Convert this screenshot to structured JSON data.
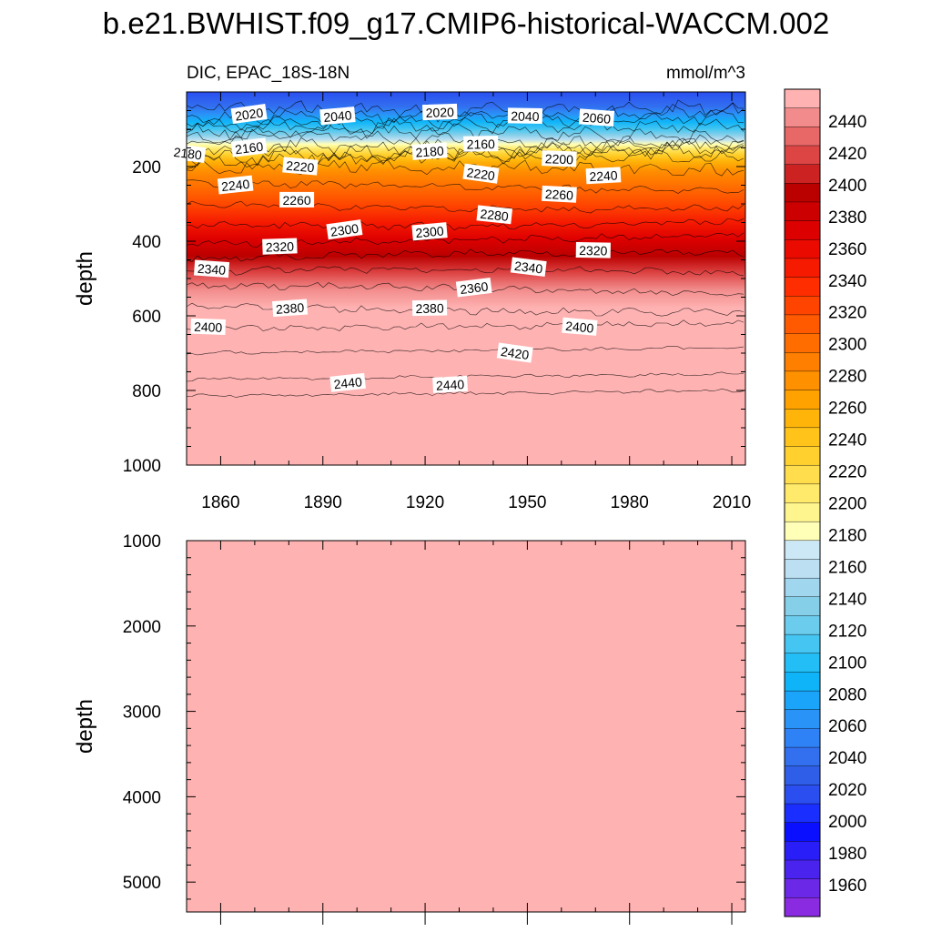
{
  "title": "b.e21.BWHIST.f09_g17.CMIP6-historical-WACCM.002",
  "colors": {
    "upper_hot": "#ffb2b2",
    "lower_panel": "#ffb2b2",
    "contour_line": "#000000"
  },
  "chart_data": [
    {
      "type": "heatmap",
      "panel": "upper",
      "subtitle_left": "DIC, EPAC_18S-18N",
      "subtitle_right": "mmol/m^3",
      "variable": "DIC",
      "units": "mmol/m^3",
      "ylabel": "depth",
      "y_reversed": true,
      "ylim": [
        0,
        1000
      ],
      "xlim": [
        1850,
        2014
      ],
      "x_ticks": [
        1860,
        1890,
        1920,
        1950,
        1980,
        2010
      ],
      "y_ticks": [
        200,
        400,
        600,
        800,
        1000
      ],
      "contour_interval": 10,
      "contour_levels_depth_profile": [
        {
          "level": 2020,
          "depth": 40
        },
        {
          "level": 2040,
          "depth": 60
        },
        {
          "level": 2060,
          "depth": 80
        },
        {
          "level": 2080,
          "depth": 100
        },
        {
          "level": 2100,
          "depth": 115
        },
        {
          "level": 2120,
          "depth": 128
        },
        {
          "level": 2140,
          "depth": 140
        },
        {
          "level": 2160,
          "depth": 152
        },
        {
          "level": 2180,
          "depth": 168
        },
        {
          "level": 2200,
          "depth": 185
        },
        {
          "level": 2220,
          "depth": 210
        },
        {
          "level": 2240,
          "depth": 255
        },
        {
          "level": 2260,
          "depth": 305
        },
        {
          "level": 2280,
          "depth": 350
        },
        {
          "level": 2300,
          "depth": 395
        },
        {
          "level": 2320,
          "depth": 440
        },
        {
          "level": 2340,
          "depth": 485
        },
        {
          "level": 2360,
          "depth": 530
        },
        {
          "level": 2380,
          "depth": 580
        },
        {
          "level": 2400,
          "depth": 635
        },
        {
          "level": 2420,
          "depth": 700
        },
        {
          "level": 2440,
          "depth": 770
        },
        {
          "level": 2450,
          "depth": 815
        }
      ],
      "contour_labels": [
        {
          "text": "2020",
          "x": 1863,
          "depth": 60
        },
        {
          "text": "2040",
          "x": 1889,
          "depth": 65
        },
        {
          "text": "2020",
          "x": 1919,
          "depth": 55
        },
        {
          "text": "2040",
          "x": 1944,
          "depth": 65
        },
        {
          "text": "2060",
          "x": 1965,
          "depth": 70
        },
        {
          "text": "2180",
          "x": 1845,
          "depth": 165
        },
        {
          "text": "2160",
          "x": 1863,
          "depth": 150
        },
        {
          "text": "2180",
          "x": 1916,
          "depth": 160
        },
        {
          "text": "2160",
          "x": 1931,
          "depth": 140
        },
        {
          "text": "2200",
          "x": 1954,
          "depth": 180
        },
        {
          "text": "2220",
          "x": 1878,
          "depth": 200
        },
        {
          "text": "2220",
          "x": 1931,
          "depth": 220
        },
        {
          "text": "2240",
          "x": 1859,
          "depth": 250
        },
        {
          "text": "2240",
          "x": 1967,
          "depth": 225
        },
        {
          "text": "2260",
          "x": 1877,
          "depth": 290
        },
        {
          "text": "2260",
          "x": 1954,
          "depth": 275
        },
        {
          "text": "2280",
          "x": 1935,
          "depth": 330
        },
        {
          "text": "2300",
          "x": 1891,
          "depth": 370
        },
        {
          "text": "2300",
          "x": 1916,
          "depth": 375
        },
        {
          "text": "2320",
          "x": 1872,
          "depth": 415
        },
        {
          "text": "2320",
          "x": 1964,
          "depth": 425
        },
        {
          "text": "2340",
          "x": 1852,
          "depth": 475
        },
        {
          "text": "2340",
          "x": 1945,
          "depth": 470
        },
        {
          "text": "2360",
          "x": 1929,
          "depth": 525
        },
        {
          "text": "2380",
          "x": 1875,
          "depth": 580
        },
        {
          "text": "2380",
          "x": 1916,
          "depth": 580
        },
        {
          "text": "2400",
          "x": 1851,
          "depth": 630
        },
        {
          "text": "2400",
          "x": 1960,
          "depth": 630
        },
        {
          "text": "2420",
          "x": 1941,
          "depth": 700
        },
        {
          "text": "2440",
          "x": 1892,
          "depth": 780
        },
        {
          "text": "2440",
          "x": 1922,
          "depth": 785
        }
      ]
    },
    {
      "type": "heatmap",
      "panel": "lower",
      "ylabel": "depth",
      "y_reversed": true,
      "ylim": [
        1000,
        5350
      ],
      "xlim": [
        1850,
        2014
      ],
      "y_ticks": [
        1000,
        2000,
        3000,
        4000,
        5000
      ],
      "fill_level": "> 2450"
    }
  ],
  "colorbar": {
    "tick_labels": [
      "1960",
      "1980",
      "2000",
      "2020",
      "2040",
      "2060",
      "2080",
      "2100",
      "2120",
      "2140",
      "2160",
      "2180",
      "2200",
      "2220",
      "2240",
      "2260",
      "2280",
      "2300",
      "2320",
      "2340",
      "2360",
      "2380",
      "2400",
      "2420",
      "2440"
    ],
    "colors": [
      "#8a2be2",
      "#6b28e6",
      "#4a23ee",
      "#2a1ef8",
      "#0a10ff",
      "#1a2fff",
      "#2a4ef0",
      "#2f5fe8",
      "#3270f0",
      "#2e82f5",
      "#2a93f8",
      "#1aa4fa",
      "#0fb4f8",
      "#22bef5",
      "#45c6f2",
      "#6ccced",
      "#85cfe9",
      "#a0d6ee",
      "#bce0f2",
      "#cce7f5",
      "#ffffb8",
      "#fff58e",
      "#ffea6b",
      "#ffdd4c",
      "#ffd02e",
      "#ffc31a",
      "#ffb40a",
      "#ffa200",
      "#ff9100",
      "#ff7f00",
      "#ff6d00",
      "#ff5a00",
      "#ff4400",
      "#ff2d00",
      "#f51a00",
      "#ea0a00",
      "#dd0000",
      "#cc0000",
      "#bb0000",
      "#cc2222",
      "#dd4444",
      "#e86868",
      "#f28c8c",
      "#ffb2b2"
    ]
  }
}
